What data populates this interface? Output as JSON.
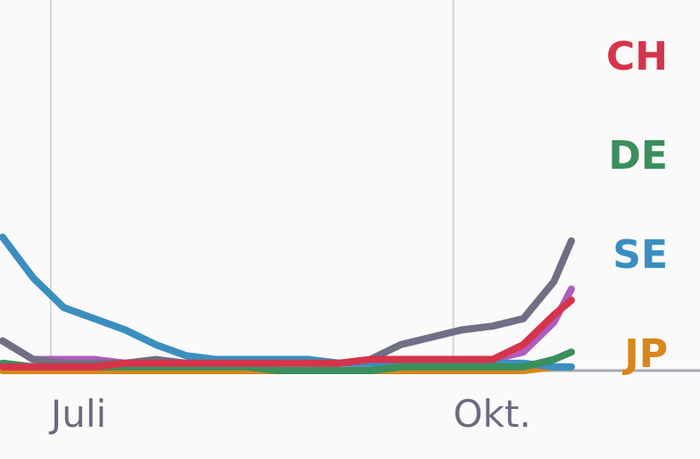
{
  "chart_data": {
    "type": "line",
    "x": [
      -11,
      -4,
      3,
      10,
      17,
      24,
      31,
      38,
      45,
      52,
      59,
      66,
      73,
      80,
      87,
      94,
      101,
      108,
      115,
      119
    ],
    "xlim": [
      -11.6,
      148.4
    ],
    "xticks": [
      {
        "value": 0,
        "label": "Juli"
      },
      {
        "value": 92,
        "label": "Okt."
      }
    ],
    "ylim": [
      0,
      100
    ],
    "grid": true,
    "series": [
      {
        "name": "CH",
        "color": "#d6344a",
        "values": [
          1,
          1,
          1,
          1,
          2,
          2,
          2,
          2,
          2,
          2,
          2,
          2,
          3,
          3,
          3,
          3,
          3,
          7,
          15,
          19
        ]
      },
      {
        "name": "DE",
        "color": "#3a8f5c",
        "values": [
          2,
          1,
          1,
          1,
          1,
          1,
          1,
          1,
          1,
          0,
          0,
          0,
          0,
          1,
          1,
          1,
          1,
          1,
          3,
          5
        ]
      },
      {
        "name": "SE",
        "color": "#3a8fc0",
        "values": [
          36,
          25,
          17,
          14,
          11,
          7,
          4,
          3,
          3,
          3,
          3,
          2,
          2,
          2,
          2,
          2,
          2,
          2,
          1,
          1
        ]
      },
      {
        "name": "JP",
        "color": "#d9861a",
        "values": [
          0,
          0,
          0,
          0,
          0,
          0,
          0,
          0,
          0,
          0,
          0,
          0,
          0,
          0,
          0,
          0,
          0,
          0,
          1,
          1
        ]
      },
      {
        "color": "#6f6f85",
        "values": [
          8,
          3,
          2,
          2,
          2,
          3,
          2,
          2,
          2,
          2,
          2,
          2,
          3,
          7,
          9,
          11,
          12,
          14,
          24,
          35
        ]
      },
      {
        "color": "#b05cc0",
        "values": [
          8,
          3,
          3,
          3,
          2,
          2,
          2,
          2,
          2,
          3,
          2,
          2,
          2,
          2,
          2,
          3,
          3,
          5,
          13,
          22
        ]
      }
    ]
  }
}
